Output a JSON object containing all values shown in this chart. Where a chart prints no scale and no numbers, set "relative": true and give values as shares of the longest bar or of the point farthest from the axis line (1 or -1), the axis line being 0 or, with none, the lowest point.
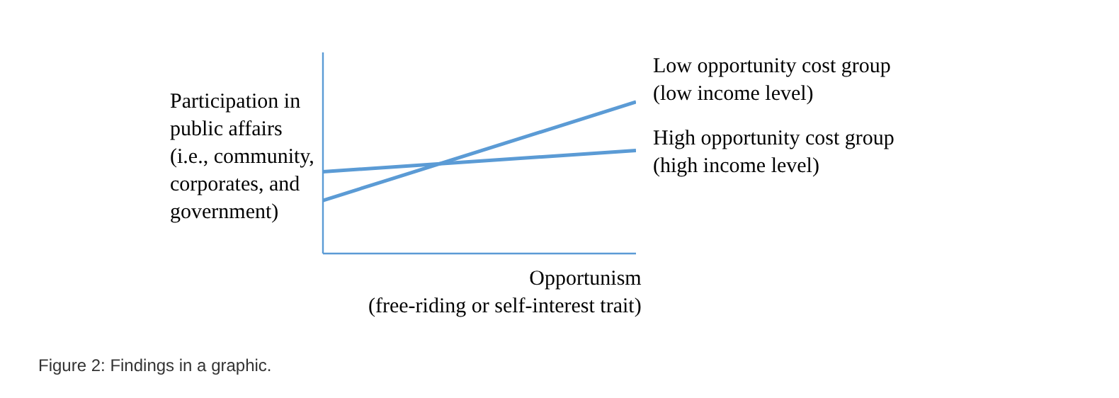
{
  "chart_data": {
    "type": "line",
    "relative": true,
    "ylabel": "Participation in\npublic affairs\n(i.e., community,\ncorporates, and\ngovernment)",
    "xlabel": "Opportunism\n(free-riding or self-interest trait)",
    "categories": [
      null,
      null
    ],
    "series": [
      {
        "name": "Low opportunity cost group\n(low income level)",
        "color": "#5b9bd5",
        "values": [
          0.35,
          1
        ]
      },
      {
        "name": "High opportunity cost group\n(high income level)",
        "color": "#5b9bd5",
        "values": [
          0.54,
          0.68
        ]
      }
    ],
    "marker": "none",
    "legend": false,
    "annotations": [
      "Figure 2: Findings in a graphic."
    ]
  }
}
